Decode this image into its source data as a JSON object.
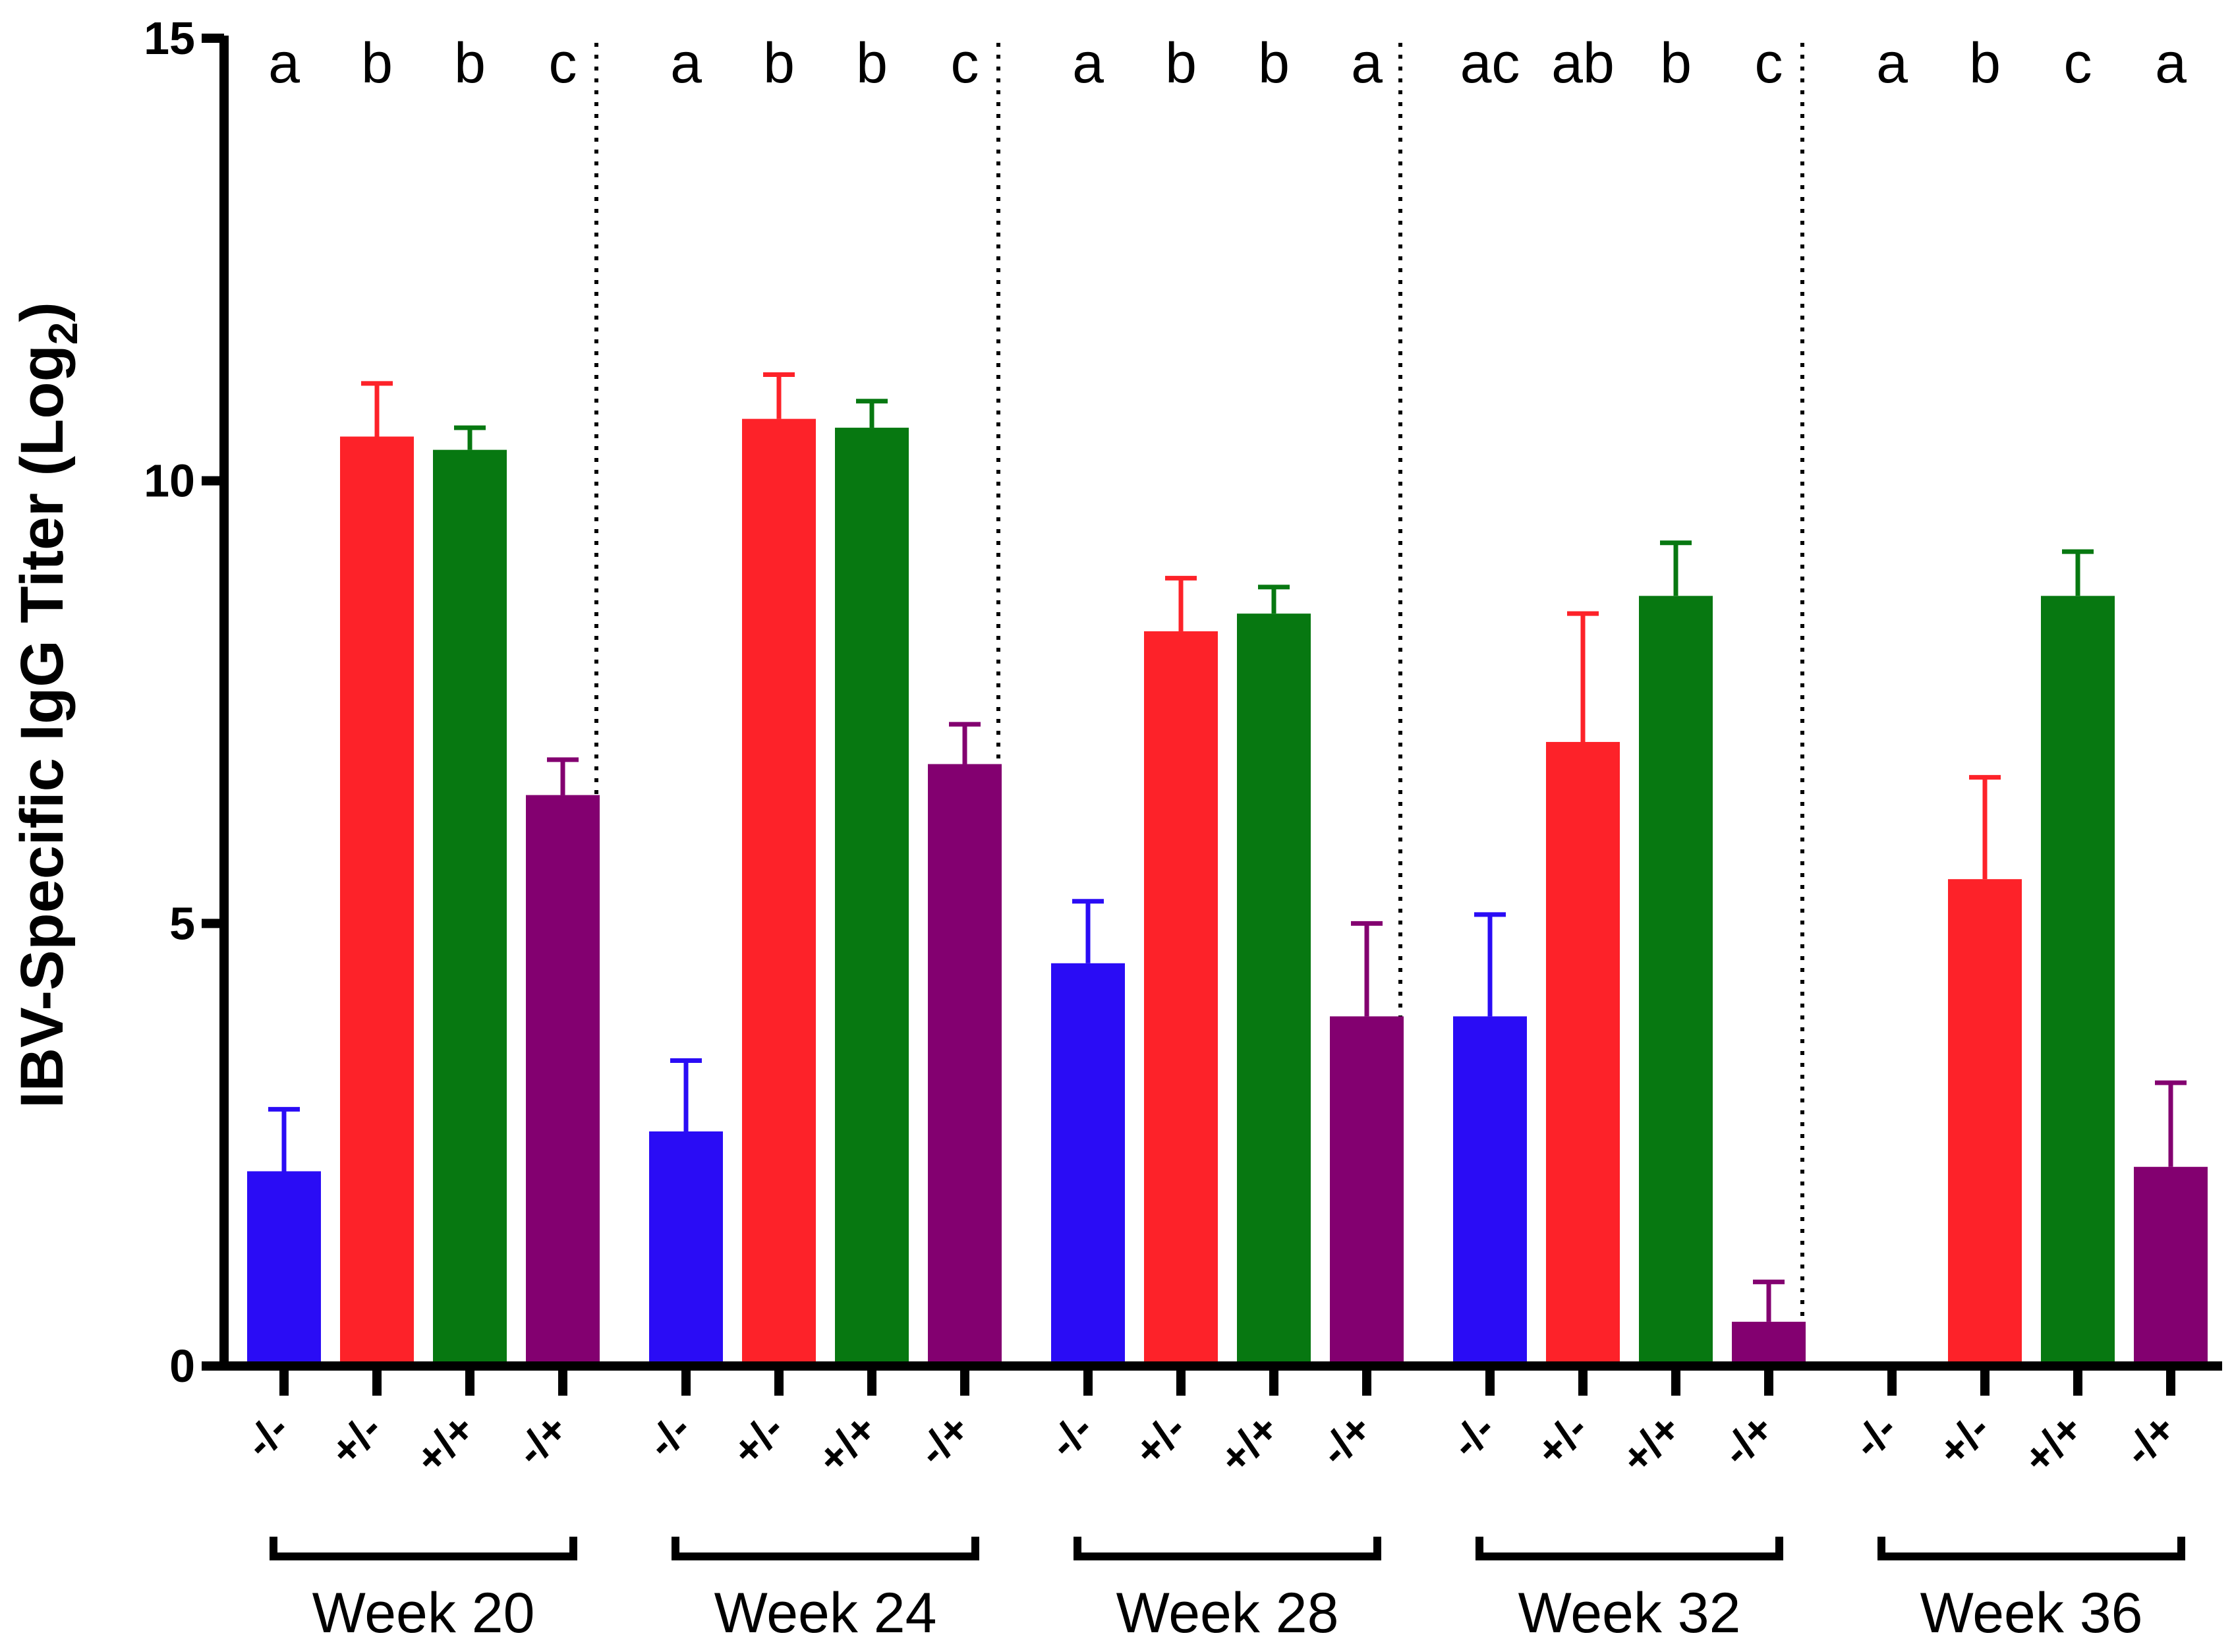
{
  "chart_data": {
    "type": "bar",
    "title": "",
    "xlabel": "",
    "ylabel": "IBV-Specific IgG Titer (Log",
    "ylabel_subscript": "2",
    "ylabel_suffix": ")",
    "ylim": [
      0,
      15
    ],
    "yticks": [
      "0",
      "5",
      "10",
      "15"
    ],
    "grid": false,
    "legend": "none",
    "categories": [
      "-/-",
      "+/-",
      "+/+",
      "-/+"
    ],
    "series_colors": [
      "#2a0cf5",
      "#fd2229",
      "#077811",
      "#830070"
    ],
    "groups": [
      {
        "label": "Week 20",
        "values": [
          2.2,
          10.5,
          10.35,
          6.45
        ],
        "errors": [
          0.7,
          0.6,
          0.25,
          0.4
        ],
        "letters": [
          "a",
          "b",
          "b",
          "c"
        ]
      },
      {
        "label": "Week 24",
        "values": [
          2.65,
          10.7,
          10.6,
          6.8
        ],
        "errors": [
          0.8,
          0.5,
          0.3,
          0.45
        ],
        "letters": [
          "a",
          "b",
          "b",
          "c"
        ]
      },
      {
        "label": "Week 28",
        "values": [
          4.55,
          8.3,
          8.5,
          3.95
        ],
        "errors": [
          0.7,
          0.6,
          0.3,
          1.05
        ],
        "letters": [
          "a",
          "b",
          "b",
          "a"
        ]
      },
      {
        "label": "Week 32",
        "values": [
          3.95,
          7.05,
          8.7,
          0.5
        ],
        "errors": [
          1.15,
          1.45,
          0.6,
          0.45
        ],
        "letters": [
          "ac",
          "ab",
          "b",
          "c"
        ]
      },
      {
        "label": "Week 36",
        "values": [
          0,
          5.5,
          8.7,
          2.25
        ],
        "errors": [
          0,
          1.15,
          0.5,
          0.95
        ],
        "letters": [
          "a",
          "b",
          "c",
          "a"
        ]
      }
    ]
  }
}
